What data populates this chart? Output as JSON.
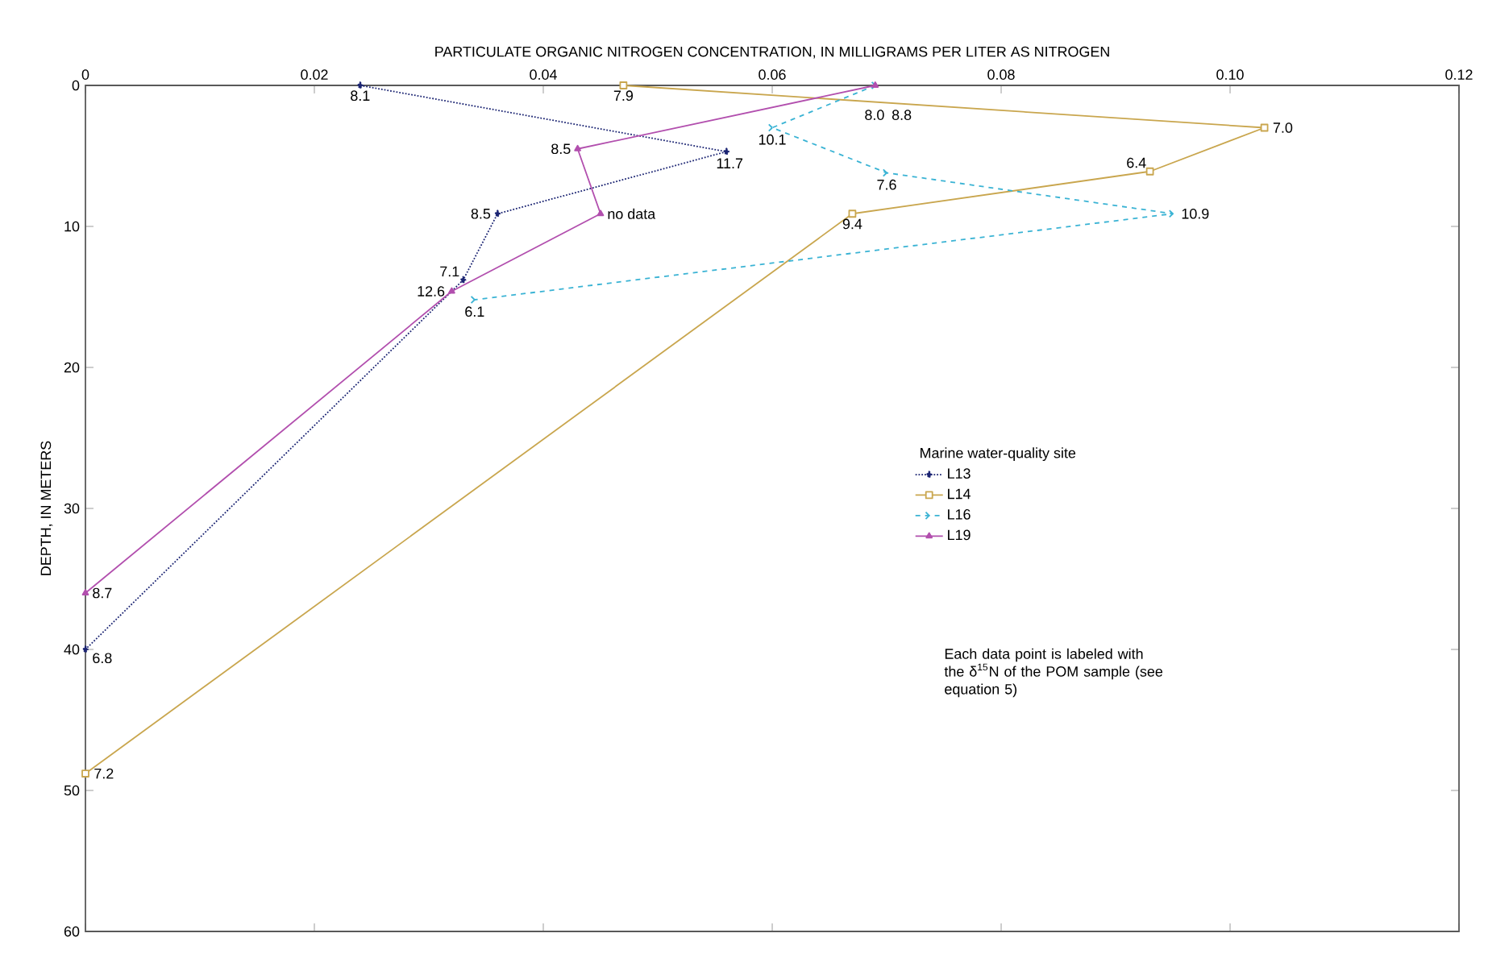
{
  "chart_data": {
    "type": "line",
    "xlabel": "PARTICULATE ORGANIC NITROGEN CONCENTRATION, IN MILLIGRAMS PER LITER AS NITROGEN",
    "ylabel": "DEPTH, IN METERS",
    "legend_title": "Marine water-quality site",
    "xlim": [
      0,
      0.12
    ],
    "xticks": [
      0,
      0.02,
      0.04,
      0.06,
      0.08,
      {
        "value": 0.1,
        "label": "0.10"
      },
      0.12
    ],
    "ylim": [
      60,
      0
    ],
    "yticks": [
      0,
      10,
      20,
      30,
      40,
      50,
      60
    ],
    "grid": false,
    "legend": "right",
    "series": [
      {
        "name": "L13",
        "color": "#1c2573",
        "marker": "diamond",
        "line_style": "dotted",
        "x": [
          0.024,
          0.056,
          0.036,
          0.033,
          0
        ],
        "values": [
          0,
          4.7,
          9.1,
          13.8,
          40
        ]
      },
      {
        "name": "L14",
        "color": "#c9a64e",
        "marker": "square",
        "line_style": "solid",
        "x": [
          0.047,
          0.103,
          0.093,
          0.067,
          0
        ],
        "values": [
          0,
          3.0,
          6.1,
          9.1,
          48.8
        ]
      },
      {
        "name": "L16",
        "color": "#3ab3d4",
        "marker": "cross",
        "line_style": "dashed",
        "x": [
          0.069,
          0.06,
          0.07,
          0.095,
          0.034
        ],
        "values": [
          0,
          3.0,
          6.2,
          9.1,
          15.2
        ]
      },
      {
        "name": "L19",
        "color": "#b24fae",
        "marker": "triangle",
        "line_style": "solid",
        "x": [
          0.069,
          0.043,
          0.045,
          0.032,
          0
        ],
        "values": [
          0,
          4.5,
          9.1,
          14.6,
          36
        ]
      }
    ],
    "annotations": [
      {
        "text": "8.1",
        "x": 0.024,
        "y": 0
      },
      {
        "text": "11.7",
        "x": 0.056,
        "y": 4.7
      },
      {
        "text": "8.5",
        "x": 0.036,
        "y": 9.1
      },
      {
        "text": "7.1",
        "x": 0.033,
        "y": 13.8
      },
      {
        "text": "6.8",
        "x": 0,
        "y": 40
      },
      {
        "text": "7.9",
        "x": 0.047,
        "y": 0
      },
      {
        "text": "7.0",
        "x": 0.103,
        "y": 3.0
      },
      {
        "text": "6.4",
        "x": 0.093,
        "y": 6.1
      },
      {
        "text": "9.4",
        "x": 0.067,
        "y": 9.1
      },
      {
        "text": "7.2",
        "x": 0,
        "y": 48.8
      },
      {
        "text": "8.8",
        "x": 0.069,
        "y": 0
      },
      {
        "text": "10.1",
        "x": 0.06,
        "y": 3.0
      },
      {
        "text": "7.6",
        "x": 0.07,
        "y": 6.2
      },
      {
        "text": "10.9",
        "x": 0.095,
        "y": 9.1
      },
      {
        "text": "6.1",
        "x": 0.034,
        "y": 15.2
      },
      {
        "text": "8.0",
        "x": 0.069,
        "y": 0
      },
      {
        "text": "8.5",
        "x": 0.043,
        "y": 4.5
      },
      {
        "text": "no data",
        "x": 0.045,
        "y": 9.1
      },
      {
        "text": "12.6",
        "x": 0.032,
        "y": 14.6
      },
      {
        "text": "8.7",
        "x": 0,
        "y": 36
      },
      "Each data point is labeled with the δ$^{15}$N of the POM sample (see equation 5)"
    ]
  }
}
